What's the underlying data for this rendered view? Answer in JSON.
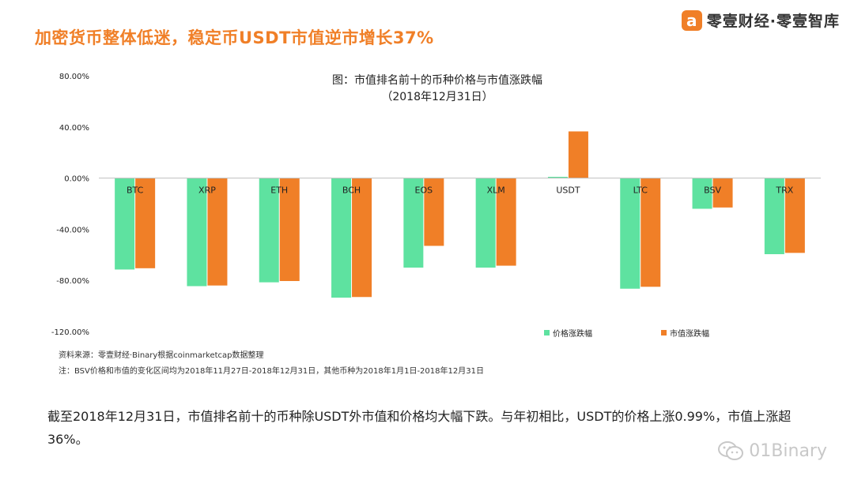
{
  "headline": "加密货币整体低迷，稳定币USDT市值逆市增长37%",
  "brand": {
    "logo_glyph": "a",
    "name": "零壹财经·零壹智库"
  },
  "chart_data": {
    "type": "bar",
    "title": "图：市值排名前十的币种价格与市值涨跌幅",
    "subtitle": "（2018年12月31日）",
    "categories": [
      "BTC",
      "XRP",
      "ETH",
      "BCH",
      "EOS",
      "XLM",
      "USDT",
      "LTC",
      "BSV",
      "TRX"
    ],
    "series": [
      {
        "name": "价格涨跌幅",
        "color": "#5ee2a0",
        "values": [
          -71.5,
          -84.5,
          -81.5,
          -93.5,
          -70,
          -70,
          0.99,
          -86.5,
          -24,
          -59.5
        ]
      },
      {
        "name": "市值涨跌幅",
        "color": "#f07f27",
        "values": [
          -70.5,
          -84,
          -80.5,
          -93,
          -53,
          -68.5,
          36.5,
          -85,
          -23,
          -58.5
        ]
      }
    ],
    "ylim": [
      -120,
      80
    ],
    "yticks": [
      80,
      40,
      0,
      -40,
      -80,
      -120
    ],
    "ytick_labels": [
      "80.00%",
      "40.00%",
      "0.00%",
      "-40.00%",
      "-80.00%",
      "-120.00%"
    ],
    "xlabel": "",
    "ylabel": "",
    "legend_position": "bottom-right"
  },
  "source": "资料来源：零壹财经·Binary根据coinmarketcap数据整理",
  "note": "注：BSV价格和市值的变化区间均为2018年11月27日-2018年12月31日，其他币种为2018年1月1日-2018年12月31日",
  "summary": "截至2018年12月31日，市值排名前十的币种除USDT外市值和价格均大幅下跌。与年初相比，USDT的价格上涨0.99%，市值上涨超36%。",
  "watermark": "01Binary",
  "watermark_icon": "wechat-icon"
}
